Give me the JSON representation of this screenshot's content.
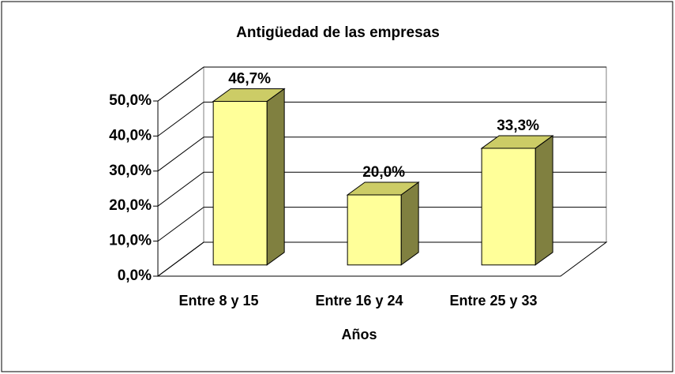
{
  "chart_data": {
    "type": "bar3d",
    "title": "Antigüedad de las empresas",
    "categories": [
      "Entre 8 y 15",
      "Entre 16 y 24",
      "Entre 25 y 33"
    ],
    "values": [
      46.7,
      20.0,
      33.3
    ],
    "value_labels": [
      "46,7%",
      "20,0%",
      "33,3%"
    ],
    "color": "#ffff99",
    "x_label": "Años",
    "ylim": [
      0,
      50
    ],
    "yticks": [
      {
        "value": 0,
        "label": "0,0%"
      },
      {
        "value": 10,
        "label": "10,0%"
      },
      {
        "value": 20,
        "label": "20,0%"
      },
      {
        "value": 30,
        "label": "30,0%"
      },
      {
        "value": 40,
        "label": "40,0%"
      },
      {
        "value": 50,
        "label": "50,0%"
      }
    ],
    "grid": true
  }
}
